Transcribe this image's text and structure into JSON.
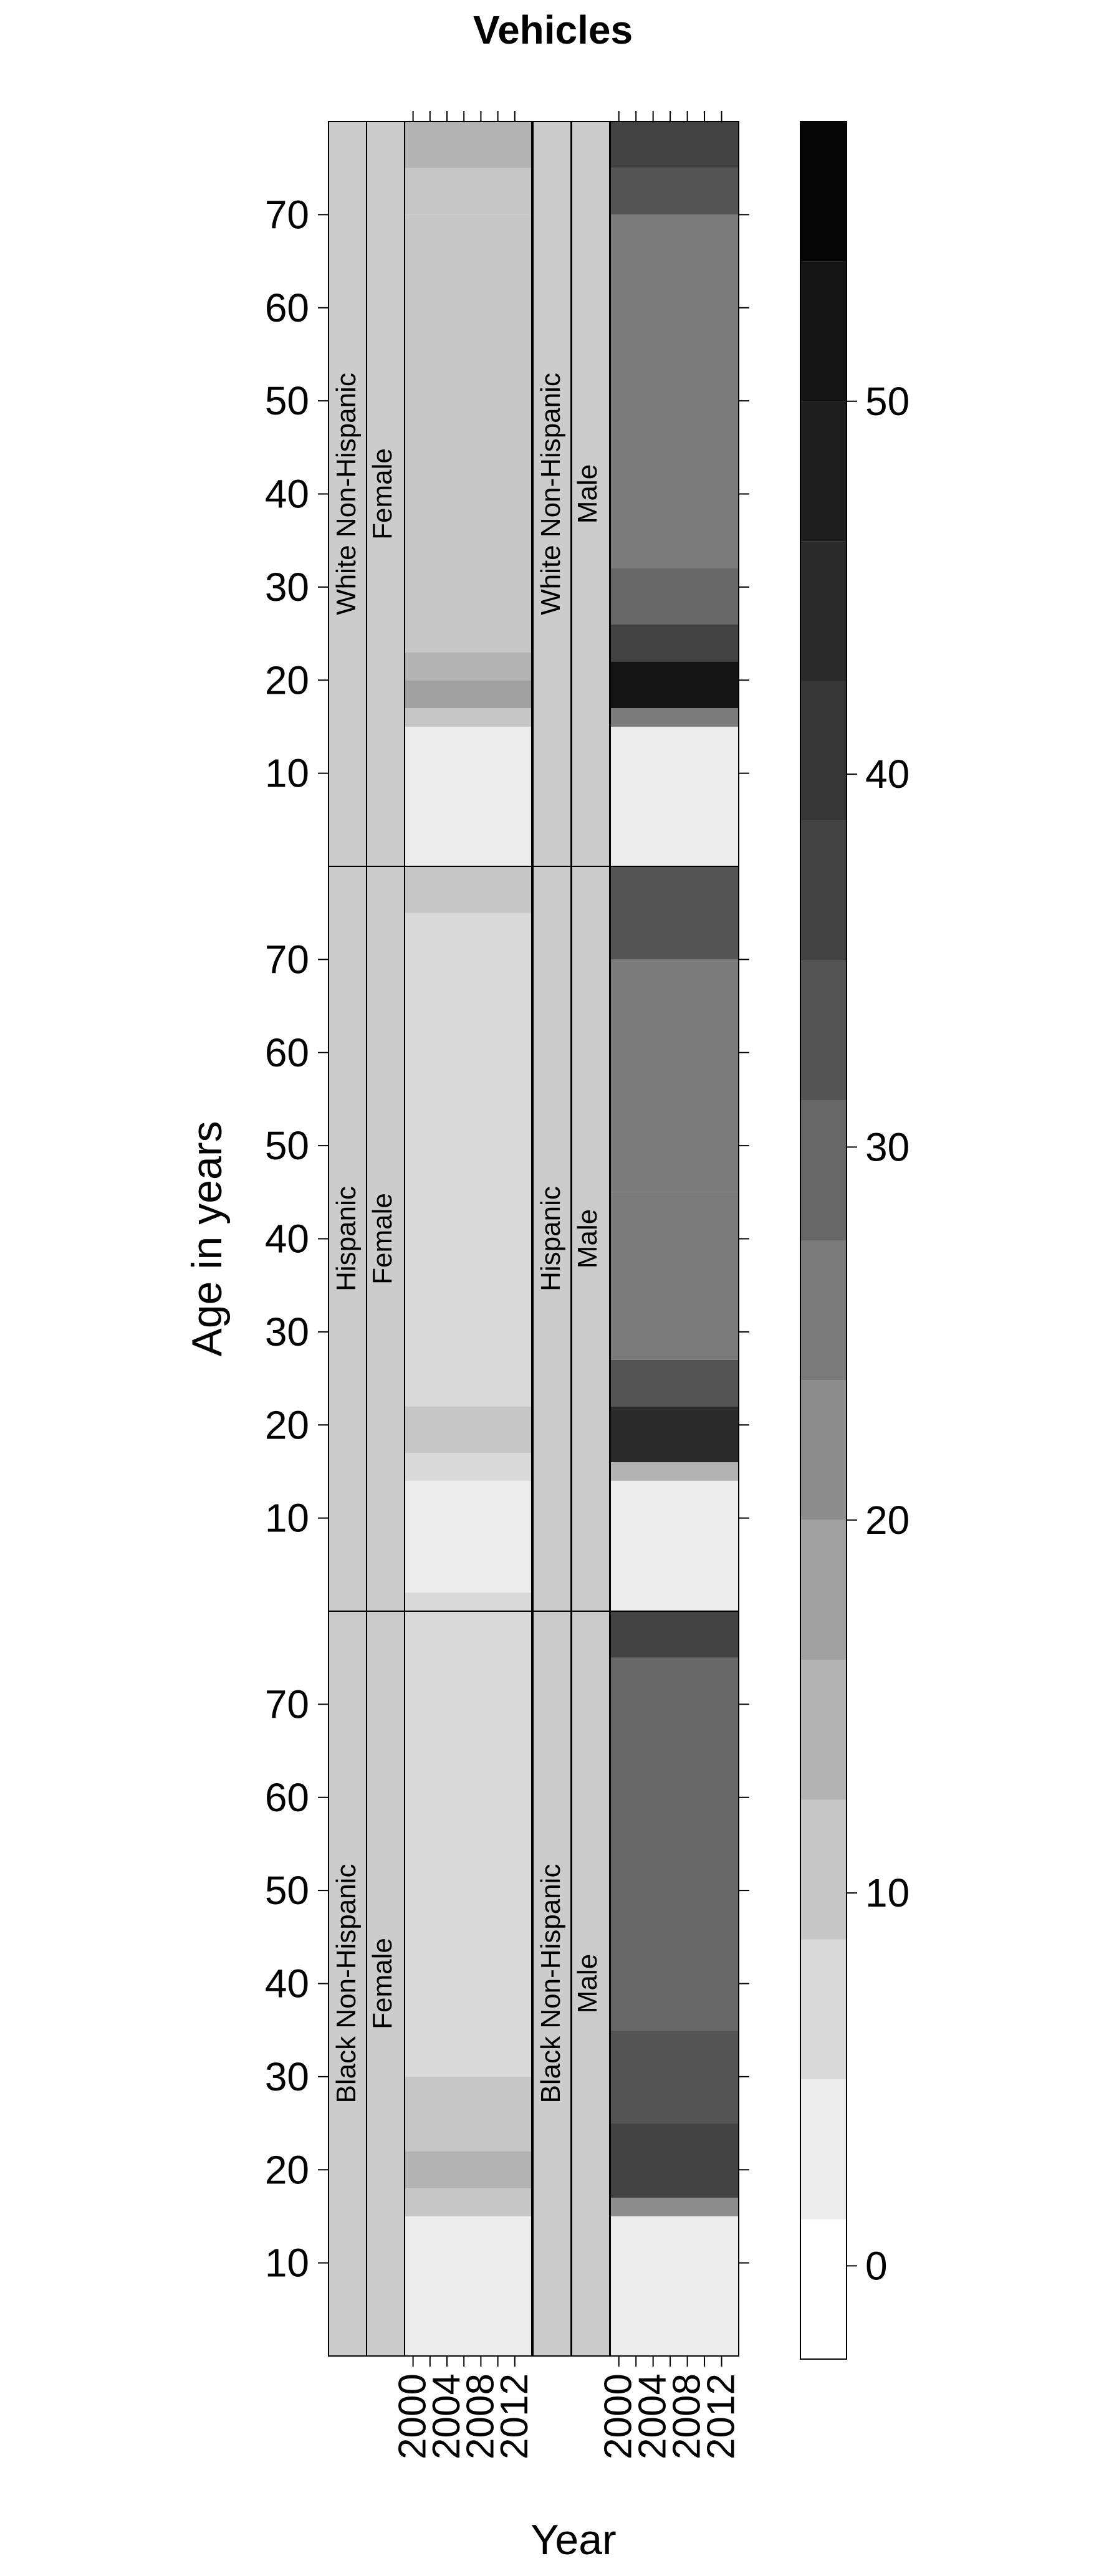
{
  "chart_data": {
    "type": "heatmap",
    "title": "Vehicles",
    "xlabel": "Year",
    "ylabel": "Age in years",
    "x_ticks": [
      "2000",
      "2004",
      "2008",
      "2012"
    ],
    "y_ticks": [
      10,
      20,
      30,
      40,
      50,
      60,
      70
    ],
    "x_range": [
      1999,
      2014
    ],
    "y_range": [
      0,
      80
    ],
    "colorbar": {
      "ticks": [
        0,
        10,
        20,
        30,
        40,
        50
      ],
      "range": [
        -2.5,
        57.5
      ],
      "bins": [
        -2.5,
        1.25,
        5,
        8.75,
        12.5,
        16.25,
        20,
        23.75,
        27.5,
        31.25,
        35,
        38.75,
        42.5,
        46.25,
        50,
        53.75,
        57.5
      ],
      "colors": [
        "#ffffff",
        "#ececec",
        "#d9d9d9",
        "#c6c6c6",
        "#b3b3b3",
        "#a0a0a0",
        "#8d8d8d",
        "#7a7a7a",
        "#676767",
        "#545454",
        "#424242",
        "#363636",
        "#2a2a2a",
        "#1f1f1f",
        "#141414",
        "#050505"
      ]
    },
    "panels": [
      {
        "ethnicity": "White Non-Hispanic",
        "sex": "Female",
        "bands": [
          {
            "age": [
              0,
              15
            ],
            "value": 3
          },
          {
            "age": [
              15,
              17
            ],
            "value": 10
          },
          {
            "age": [
              17,
              20
            ],
            "value": 17
          },
          {
            "age": [
              20,
              23
            ],
            "value": 13
          },
          {
            "age": [
              23,
              70
            ],
            "value": 9
          },
          {
            "age": [
              70,
              75
            ],
            "value": 11
          },
          {
            "age": [
              75,
              80
            ],
            "value": 13
          }
        ]
      },
      {
        "ethnicity": "White Non-Hispanic",
        "sex": "Male",
        "bands": [
          {
            "age": [
              0,
              15
            ],
            "value": 3
          },
          {
            "age": [
              15,
              17
            ],
            "value": 25
          },
          {
            "age": [
              17,
              22
            ],
            "value": 50
          },
          {
            "age": [
              22,
              26
            ],
            "value": 38
          },
          {
            "age": [
              26,
              32
            ],
            "value": 30
          },
          {
            "age": [
              32,
              70
            ],
            "value": 26
          },
          {
            "age": [
              70,
              75
            ],
            "value": 32
          },
          {
            "age": [
              75,
              80
            ],
            "value": 38
          }
        ]
      },
      {
        "ethnicity": "Hispanic",
        "sex": "Female",
        "bands": [
          {
            "age": [
              0,
              2
            ],
            "value": 5
          },
          {
            "age": [
              2,
              14
            ],
            "value": 3
          },
          {
            "age": [
              14,
              17
            ],
            "value": 7
          },
          {
            "age": [
              17,
              22
            ],
            "value": 11
          },
          {
            "age": [
              22,
              75
            ],
            "value": 8
          },
          {
            "age": [
              75,
              80
            ],
            "value": 11
          }
        ]
      },
      {
        "ethnicity": "Hispanic",
        "sex": "Male",
        "bands": [
          {
            "age": [
              0,
              14
            ],
            "value": 4
          },
          {
            "age": [
              14,
              16
            ],
            "value": 14
          },
          {
            "age": [
              16,
              22
            ],
            "value": 45
          },
          {
            "age": [
              22,
              27
            ],
            "value": 33
          },
          {
            "age": [
              27,
              45
            ],
            "value": 25
          },
          {
            "age": [
              45,
              70
            ],
            "value": 27
          },
          {
            "age": [
              70,
              80
            ],
            "value": 33
          }
        ]
      },
      {
        "ethnicity": "Black Non-Hispanic",
        "sex": "Female",
        "bands": [
          {
            "age": [
              0,
              2
            ],
            "value": 4
          },
          {
            "age": [
              2,
              15
            ],
            "value": 3
          },
          {
            "age": [
              15,
              18
            ],
            "value": 9
          },
          {
            "age": [
              18,
              22
            ],
            "value": 13
          },
          {
            "age": [
              22,
              30
            ],
            "value": 11
          },
          {
            "age": [
              30,
              80
            ],
            "value": 8
          }
        ]
      },
      {
        "ethnicity": "Black Non-Hispanic",
        "sex": "Male",
        "bands": [
          {
            "age": [
              0,
              15
            ],
            "value": 4
          },
          {
            "age": [
              15,
              17
            ],
            "value": 20
          },
          {
            "age": [
              17,
              25
            ],
            "value": 36
          },
          {
            "age": [
              25,
              35
            ],
            "value": 33
          },
          {
            "age": [
              35,
              75
            ],
            "value": 30
          },
          {
            "age": [
              75,
              80
            ],
            "value": 36
          }
        ]
      }
    ]
  }
}
